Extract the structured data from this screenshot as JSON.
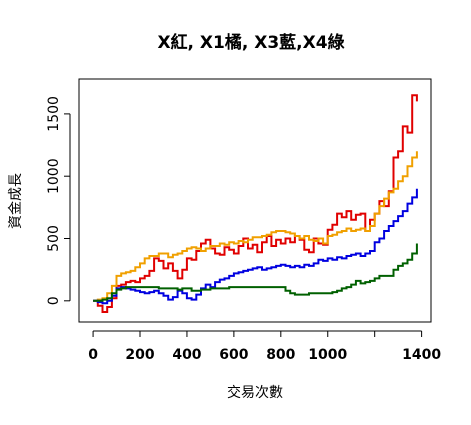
{
  "chart_data": {
    "type": "line",
    "title": "X紅, X1橘, X3藍,X4綠",
    "xlabel": "交易次數",
    "ylabel": "資金成長",
    "xlim": [
      -60,
      1440
    ],
    "ylim": [
      -170,
      1780
    ],
    "x_ticks": [
      0,
      200,
      400,
      600,
      800,
      1000,
      1200,
      1400
    ],
    "x_tick_labels": [
      "0",
      "200",
      "400",
      "600",
      "800",
      "1000",
      "",
      "1400"
    ],
    "y_ticks": [
      0,
      500,
      1000,
      1500
    ],
    "y_tick_labels": [
      "0",
      "500",
      "1000",
      "1500"
    ],
    "grid": false,
    "legend": "none",
    "series": [
      {
        "color": "#e00000",
        "x": [
          0,
          20,
          40,
          60,
          80,
          100,
          120,
          140,
          160,
          180,
          200,
          220,
          240,
          260,
          280,
          300,
          320,
          340,
          360,
          380,
          400,
          420,
          440,
          460,
          480,
          500,
          520,
          540,
          560,
          580,
          600,
          620,
          640,
          660,
          680,
          700,
          720,
          740,
          760,
          780,
          800,
          820,
          840,
          860,
          880,
          900,
          920,
          940,
          960,
          980,
          1000,
          1020,
          1040,
          1060,
          1080,
          1100,
          1120,
          1140,
          1160,
          1180,
          1200,
          1220,
          1240,
          1260,
          1280,
          1300,
          1320,
          1340,
          1360,
          1380
        ],
        "values": [
          0,
          -40,
          -90,
          -50,
          20,
          120,
          130,
          150,
          160,
          150,
          180,
          200,
          240,
          340,
          320,
          260,
          300,
          240,
          180,
          250,
          340,
          330,
          400,
          460,
          490,
          420,
          380,
          370,
          430,
          410,
          380,
          440,
          500,
          420,
          450,
          390,
          470,
          520,
          440,
          490,
          460,
          500,
          470,
          520,
          490,
          410,
          390,
          500,
          460,
          450,
          570,
          610,
          700,
          670,
          720,
          650,
          690,
          700,
          560,
          650,
          700,
          800,
          760,
          880,
          1150,
          1200,
          1400,
          1350,
          1650,
          1600
        ]
      },
      {
        "color": "#f0a000",
        "x": [
          0,
          20,
          40,
          60,
          80,
          100,
          120,
          140,
          160,
          180,
          200,
          220,
          240,
          260,
          280,
          300,
          320,
          340,
          360,
          380,
          400,
          420,
          440,
          460,
          480,
          500,
          520,
          540,
          560,
          580,
          600,
          620,
          640,
          660,
          680,
          700,
          720,
          740,
          760,
          780,
          800,
          820,
          840,
          860,
          880,
          900,
          920,
          940,
          960,
          980,
          1000,
          1020,
          1040,
          1060,
          1080,
          1100,
          1120,
          1140,
          1160,
          1180,
          1200,
          1220,
          1240,
          1260,
          1280,
          1300,
          1320,
          1340,
          1360,
          1380
        ],
        "values": [
          0,
          10,
          20,
          60,
          120,
          200,
          220,
          230,
          240,
          270,
          300,
          340,
          360,
          360,
          380,
          380,
          350,
          370,
          380,
          400,
          420,
          430,
          420,
          400,
          420,
          440,
          440,
          460,
          450,
          470,
          460,
          480,
          470,
          490,
          510,
          510,
          520,
          530,
          550,
          560,
          560,
          550,
          540,
          520,
          500,
          520,
          490,
          480,
          500,
          460,
          520,
          530,
          550,
          560,
          580,
          560,
          570,
          580,
          560,
          600,
          700,
          760,
          820,
          870,
          900,
          960,
          1000,
          1080,
          1150,
          1200
        ]
      },
      {
        "color": "#0000e0",
        "x": [
          0,
          20,
          40,
          60,
          80,
          100,
          120,
          140,
          160,
          180,
          200,
          220,
          240,
          260,
          280,
          300,
          320,
          340,
          360,
          380,
          400,
          420,
          440,
          460,
          480,
          500,
          520,
          540,
          560,
          580,
          600,
          620,
          640,
          660,
          680,
          700,
          720,
          740,
          760,
          780,
          800,
          820,
          840,
          860,
          880,
          900,
          920,
          940,
          960,
          980,
          1000,
          1020,
          1040,
          1060,
          1080,
          1100,
          1120,
          1140,
          1160,
          1180,
          1200,
          1220,
          1240,
          1260,
          1280,
          1300,
          1320,
          1340,
          1360,
          1380
        ],
        "values": [
          0,
          -10,
          -20,
          0,
          40,
          100,
          110,
          100,
          90,
          80,
          70,
          60,
          70,
          80,
          60,
          40,
          10,
          30,
          80,
          60,
          20,
          10,
          50,
          100,
          130,
          110,
          150,
          170,
          180,
          200,
          220,
          230,
          240,
          250,
          260,
          270,
          250,
          260,
          270,
          280,
          290,
          280,
          270,
          280,
          270,
          290,
          280,
          300,
          330,
          320,
          340,
          330,
          350,
          340,
          360,
          370,
          380,
          360,
          380,
          400,
          470,
          500,
          560,
          600,
          640,
          680,
          720,
          780,
          830,
          900
        ]
      },
      {
        "color": "#006000",
        "x": [
          0,
          20,
          40,
          60,
          80,
          100,
          120,
          140,
          160,
          180,
          200,
          220,
          240,
          260,
          280,
          300,
          320,
          340,
          360,
          380,
          400,
          420,
          440,
          460,
          480,
          500,
          520,
          540,
          560,
          580,
          600,
          620,
          640,
          660,
          680,
          700,
          720,
          740,
          760,
          780,
          800,
          820,
          840,
          860,
          880,
          900,
          920,
          940,
          960,
          980,
          1000,
          1020,
          1040,
          1060,
          1080,
          1100,
          1120,
          1140,
          1160,
          1180,
          1200,
          1220,
          1240,
          1260,
          1280,
          1300,
          1320,
          1340,
          1360,
          1380
        ],
        "values": [
          0,
          0,
          10,
          20,
          60,
          90,
          100,
          110,
          110,
          110,
          110,
          110,
          110,
          110,
          100,
          100,
          100,
          100,
          90,
          100,
          100,
          80,
          80,
          90,
          90,
          100,
          100,
          100,
          100,
          110,
          110,
          110,
          110,
          110,
          110,
          110,
          110,
          110,
          110,
          110,
          110,
          80,
          60,
          50,
          50,
          50,
          60,
          60,
          60,
          60,
          60,
          70,
          80,
          100,
          110,
          130,
          160,
          140,
          150,
          160,
          180,
          200,
          200,
          200,
          250,
          280,
          300,
          330,
          380,
          460
        ]
      }
    ]
  }
}
